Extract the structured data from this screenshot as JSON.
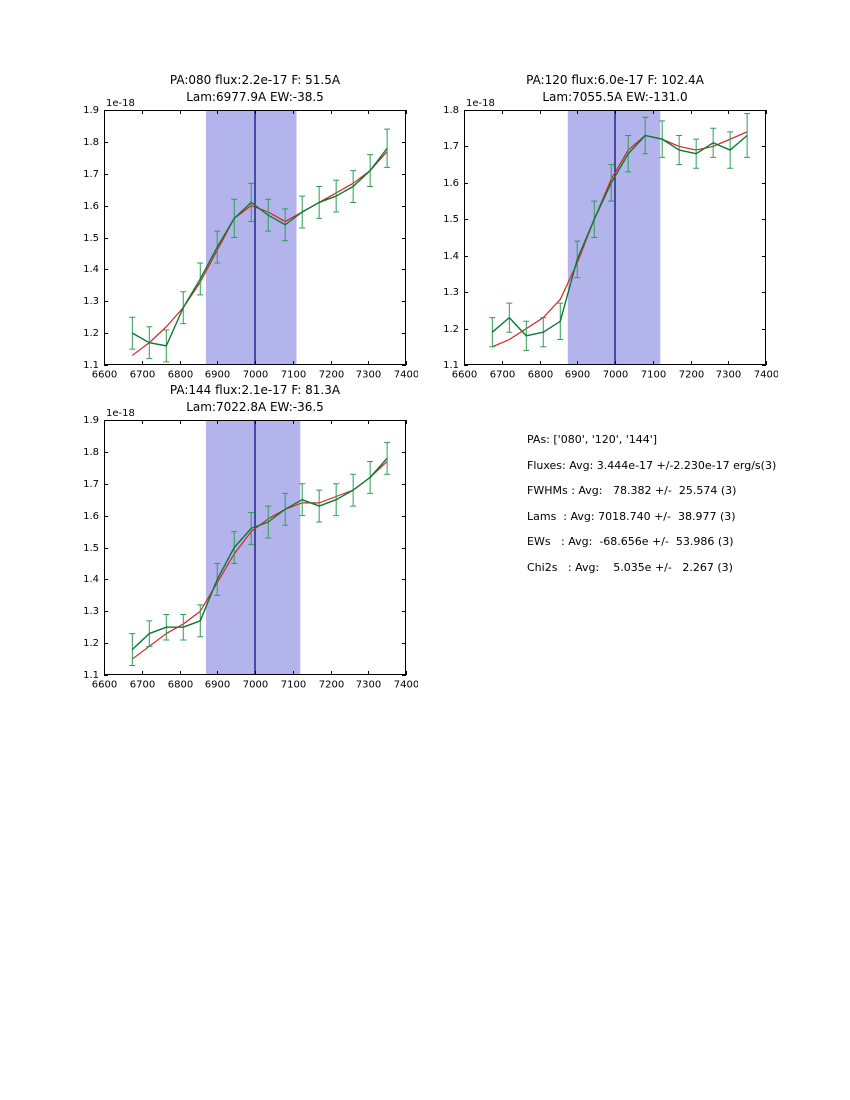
{
  "page": {
    "background": "#ffffff"
  },
  "colors": {
    "band": "#b4b4ec",
    "vline": "#000080",
    "green": "#0a7a34",
    "green_err": "#2f9e54",
    "red": "#d62222",
    "axis": "#000000",
    "text": "#000000"
  },
  "chart_data": [
    {
      "type": "line",
      "title": "PA:080 flux:2.2e-17 F: 51.5A",
      "subtitle": "Lam:6977.9A EW:-38.5",
      "offset_label": "1e-18",
      "xlim": [
        6600,
        7400
      ],
      "ylim": [
        1.1,
        1.9
      ],
      "xticks": [
        6600,
        6700,
        6800,
        6900,
        7000,
        7100,
        7200,
        7300,
        7400
      ],
      "yticks": [
        1.1,
        1.2,
        1.3,
        1.4,
        1.5,
        1.6,
        1.7,
        1.8,
        1.9
      ],
      "band": [
        6870,
        7110
      ],
      "vline": 7000,
      "x": [
        6675,
        6720,
        6765,
        6810,
        6855,
        6900,
        6945,
        6990,
        7035,
        7080,
        7125,
        7170,
        7215,
        7260,
        7305,
        7350
      ],
      "series": [
        {
          "name": "spectrum",
          "color_key": "green",
          "values": [
            1.2,
            1.17,
            1.16,
            1.28,
            1.37,
            1.47,
            1.56,
            1.61,
            1.57,
            1.54,
            1.58,
            1.61,
            1.63,
            1.66,
            1.71,
            1.78
          ],
          "errors": [
            0.05,
            0.05,
            0.05,
            0.05,
            0.05,
            0.05,
            0.06,
            0.06,
            0.05,
            0.05,
            0.05,
            0.05,
            0.05,
            0.05,
            0.05,
            0.06
          ]
        },
        {
          "name": "fit",
          "color_key": "red",
          "values": [
            1.13,
            1.17,
            1.22,
            1.28,
            1.36,
            1.46,
            1.56,
            1.6,
            1.58,
            1.55,
            1.58,
            1.61,
            1.64,
            1.67,
            1.71,
            1.77
          ]
        }
      ]
    },
    {
      "type": "line",
      "title": "PA:120 flux:6.0e-17 F: 102.4A",
      "subtitle": "Lam:7055.5A EW:-131.0",
      "offset_label": "1e-18",
      "xlim": [
        6600,
        7400
      ],
      "ylim": [
        1.1,
        1.8
      ],
      "xticks": [
        6600,
        6700,
        6800,
        6900,
        7000,
        7100,
        7200,
        7300,
        7400
      ],
      "yticks": [
        1.1,
        1.2,
        1.3,
        1.4,
        1.5,
        1.6,
        1.7,
        1.8
      ],
      "band": [
        6875,
        7120
      ],
      "vline": 7000,
      "x": [
        6675,
        6720,
        6765,
        6810,
        6855,
        6900,
        6945,
        6990,
        7035,
        7080,
        7125,
        7170,
        7215,
        7260,
        7305,
        7350
      ],
      "series": [
        {
          "name": "spectrum",
          "color_key": "green",
          "values": [
            1.19,
            1.23,
            1.18,
            1.19,
            1.22,
            1.39,
            1.5,
            1.6,
            1.68,
            1.73,
            1.72,
            1.69,
            1.68,
            1.71,
            1.69,
            1.73
          ],
          "errors": [
            0.04,
            0.04,
            0.04,
            0.04,
            0.05,
            0.05,
            0.05,
            0.05,
            0.05,
            0.05,
            0.05,
            0.04,
            0.04,
            0.04,
            0.05,
            0.06
          ]
        },
        {
          "name": "fit",
          "color_key": "red",
          "values": [
            1.15,
            1.17,
            1.2,
            1.23,
            1.28,
            1.38,
            1.5,
            1.61,
            1.69,
            1.73,
            1.72,
            1.7,
            1.69,
            1.7,
            1.72,
            1.74
          ]
        }
      ]
    },
    {
      "type": "line",
      "title": "PA:144 flux:2.1e-17 F: 81.3A",
      "subtitle": "Lam:7022.8A EW:-36.5",
      "offset_label": "1e-18",
      "xlim": [
        6600,
        7400
      ],
      "ylim": [
        1.1,
        1.9
      ],
      "xticks": [
        6600,
        6700,
        6800,
        6900,
        7000,
        7100,
        7200,
        7300,
        7400
      ],
      "yticks": [
        1.1,
        1.2,
        1.3,
        1.4,
        1.5,
        1.6,
        1.7,
        1.8,
        1.9
      ],
      "band": [
        6870,
        7120
      ],
      "vline": 7000,
      "x": [
        6675,
        6720,
        6765,
        6810,
        6855,
        6900,
        6945,
        6990,
        7035,
        7080,
        7125,
        7170,
        7215,
        7260,
        7305,
        7350
      ],
      "series": [
        {
          "name": "spectrum",
          "color_key": "green",
          "values": [
            1.18,
            1.23,
            1.25,
            1.25,
            1.27,
            1.4,
            1.5,
            1.56,
            1.58,
            1.62,
            1.65,
            1.63,
            1.65,
            1.68,
            1.72,
            1.78
          ],
          "errors": [
            0.05,
            0.04,
            0.04,
            0.04,
            0.05,
            0.05,
            0.05,
            0.05,
            0.05,
            0.05,
            0.05,
            0.05,
            0.05,
            0.05,
            0.05,
            0.05
          ]
        },
        {
          "name": "fit",
          "color_key": "red",
          "values": [
            1.15,
            1.19,
            1.23,
            1.26,
            1.3,
            1.39,
            1.48,
            1.55,
            1.59,
            1.62,
            1.64,
            1.64,
            1.66,
            1.68,
            1.72,
            1.77
          ]
        }
      ]
    }
  ],
  "stats": {
    "lines": [
      "PAs: ['080', '120', '144']",
      "Fluxes: Avg: 3.444e-17 +/-2.230e-17 erg/s(3)",
      "FWHMs : Avg:   78.382 +/-  25.574 (3)",
      "Lams  : Avg: 7018.740 +/-  38.977 (3)",
      "EWs   : Avg:  -68.656e +/-  53.986 (3)",
      "Chi2s   : Avg:    5.035e +/-   2.267 (3)"
    ]
  }
}
